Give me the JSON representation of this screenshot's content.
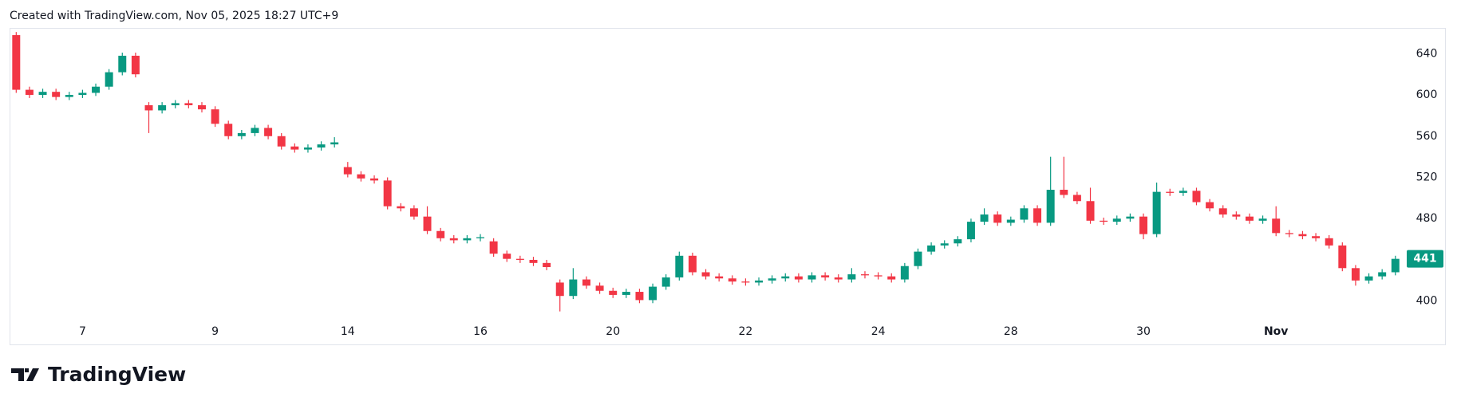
{
  "header": "Created with TradingView.com, Nov 05, 2025 18:27 UTC+9",
  "brand": "TradingView",
  "chart_data": {
    "type": "candlestick",
    "up_color": "#089981",
    "down_color": "#f23645",
    "categories": [
      null,
      null,
      null,
      null,
      null,
      "7",
      null,
      null,
      null,
      null,
      null,
      null,
      null,
      null,
      null,
      "9",
      null,
      null,
      null,
      null,
      null,
      null,
      null,
      null,
      null,
      "14",
      null,
      null,
      null,
      null,
      null,
      null,
      null,
      null,
      null,
      "16",
      null,
      null,
      null,
      null,
      null,
      null,
      null,
      null,
      null,
      "20",
      null,
      null,
      null,
      null,
      null,
      null,
      null,
      null,
      null,
      "22",
      null,
      null,
      null,
      null,
      null,
      null,
      null,
      null,
      null,
      "24",
      null,
      null,
      null,
      null,
      null,
      null,
      null,
      null,
      null,
      "28",
      null,
      null,
      null,
      null,
      null,
      null,
      null,
      null,
      null,
      "30",
      null,
      null,
      null,
      null,
      null,
      null,
      null,
      null,
      null,
      "Nov",
      null,
      null,
      null,
      null,
      null,
      null,
      null,
      null,
      null
    ],
    "open": [
      658,
      605,
      600,
      603,
      598,
      600,
      602,
      608,
      622,
      638,
      590,
      585,
      590,
      592,
      590,
      586,
      572,
      560,
      563,
      568,
      560,
      550,
      547,
      549,
      552,
      530,
      523,
      519,
      517,
      492,
      490,
      482,
      468,
      461,
      459,
      461,
      458,
      446,
      441,
      440,
      437,
      418,
      405,
      421,
      415,
      410,
      406,
      409,
      401,
      414,
      423,
      444,
      428,
      424,
      422,
      419,
      418,
      420,
      422,
      424,
      421,
      425,
      423,
      421,
      426,
      425,
      424,
      421,
      434,
      448,
      454,
      456,
      460,
      477,
      484,
      476,
      479,
      490,
      476,
      508,
      503,
      497,
      478,
      477,
      480,
      482,
      465,
      506,
      505,
      507,
      496,
      490,
      484,
      482,
      478,
      480,
      466,
      465,
      463,
      461,
      454,
      432,
      420,
      424,
      428
    ],
    "high": [
      661,
      608,
      606,
      606,
      603,
      605,
      611,
      625,
      641,
      641,
      593,
      593,
      595,
      595,
      593,
      589,
      575,
      566,
      571,
      571,
      563,
      553,
      552,
      555,
      559,
      535,
      526,
      522,
      520,
      495,
      493,
      492,
      471,
      464,
      464,
      465,
      461,
      449,
      444,
      443,
      440,
      421,
      432,
      424,
      418,
      413,
      412,
      412,
      417,
      426,
      448,
      447,
      431,
      427,
      425,
      422,
      423,
      425,
      427,
      427,
      428,
      428,
      426,
      432,
      429,
      428,
      427,
      437,
      451,
      457,
      459,
      463,
      480,
      490,
      487,
      482,
      493,
      493,
      540,
      540,
      506,
      510,
      481,
      483,
      485,
      485,
      515,
      509,
      510,
      510,
      499,
      493,
      487,
      485,
      483,
      492,
      469,
      468,
      466,
      464,
      457,
      435,
      427,
      431,
      444
    ],
    "low": [
      602,
      597,
      597,
      595,
      595,
      597,
      599,
      605,
      619,
      617,
      563,
      582,
      587,
      587,
      583,
      569,
      557,
      557,
      560,
      557,
      547,
      544,
      544,
      546,
      549,
      520,
      516,
      514,
      489,
      487,
      479,
      465,
      458,
      456,
      456,
      458,
      443,
      438,
      437,
      434,
      430,
      390,
      402,
      412,
      407,
      403,
      403,
      398,
      398,
      411,
      420,
      425,
      421,
      419,
      416,
      415,
      415,
      417,
      419,
      418,
      418,
      420,
      418,
      418,
      422,
      421,
      418,
      418,
      431,
      445,
      451,
      453,
      457,
      474,
      473,
      473,
      476,
      473,
      473,
      500,
      494,
      475,
      474,
      474,
      477,
      460,
      462,
      502,
      502,
      493,
      487,
      481,
      479,
      475,
      475,
      463,
      462,
      460,
      458,
      451,
      429,
      415,
      417,
      421,
      425
    ],
    "close": [
      605,
      600,
      603,
      598,
      600,
      602,
      608,
      622,
      638,
      620,
      585,
      590,
      592,
      590,
      586,
      572,
      560,
      563,
      568,
      560,
      550,
      547,
      549,
      552,
      554,
      523,
      519,
      517,
      492,
      490,
      482,
      468,
      461,
      459,
      461,
      462,
      446,
      441,
      440,
      437,
      433,
      405,
      421,
      415,
      410,
      406,
      409,
      401,
      414,
      423,
      444,
      428,
      424,
      422,
      419,
      418,
      420,
      422,
      424,
      421,
      425,
      423,
      421,
      426,
      425,
      424,
      421,
      434,
      448,
      454,
      456,
      460,
      477,
      484,
      476,
      479,
      490,
      476,
      508,
      503,
      497,
      478,
      477,
      480,
      482,
      465,
      506,
      505,
      507,
      496,
      490,
      484,
      482,
      478,
      480,
      466,
      465,
      463,
      461,
      454,
      432,
      420,
      424,
      428,
      441
    ],
    "ylim": [
      358,
      665
    ],
    "yticks": [
      400,
      440,
      480,
      520,
      560,
      600,
      640
    ],
    "last_price": 441
  }
}
